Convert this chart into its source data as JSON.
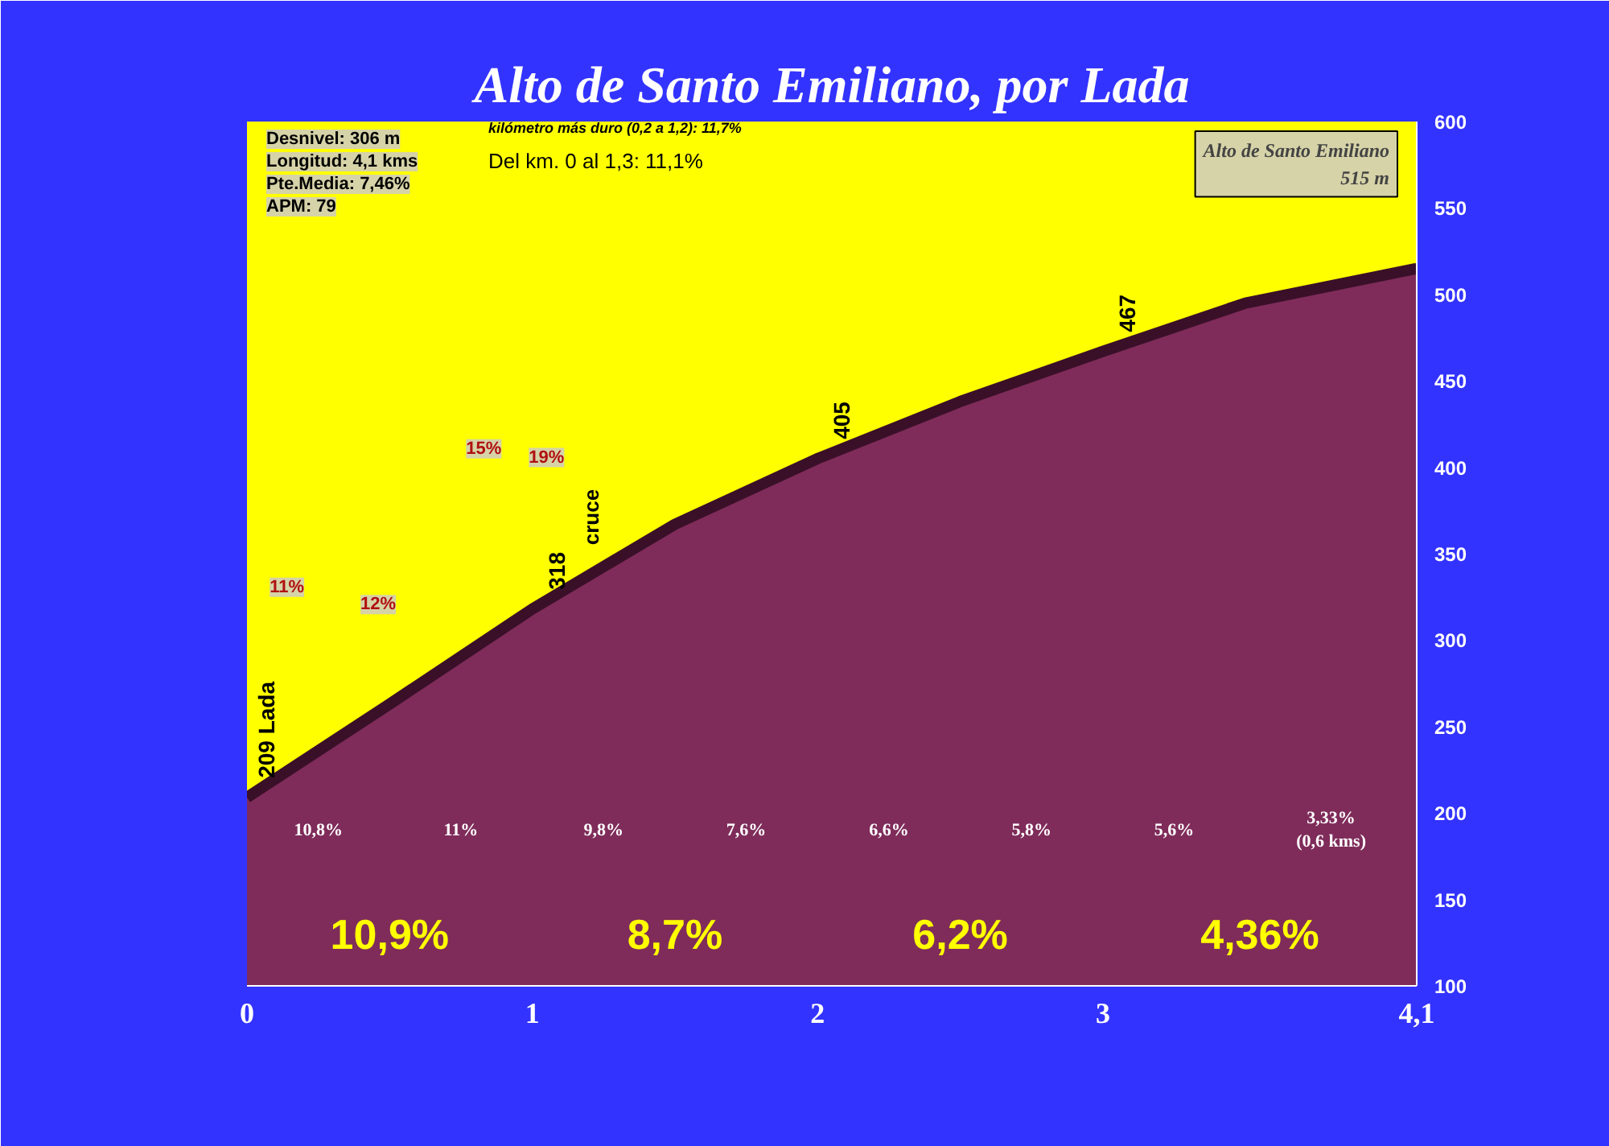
{
  "chart_data": {
    "type": "area",
    "title": "Alto de Santo Emiliano, por Lada",
    "x": [
      0,
      0.5,
      1,
      1.5,
      2,
      2.5,
      3,
      3.5,
      4.1
    ],
    "series": [
      {
        "color": "#7f2c5a",
        "values": [
          209,
          263,
          318,
          367,
          405,
          438,
          467,
          495,
          515
        ]
      }
    ],
    "xlim": [
      0,
      4.1
    ],
    "xticks": [
      0,
      1,
      2,
      3,
      {
        "value": 4.1,
        "label": "4,1"
      }
    ],
    "ylim": [
      100,
      600
    ],
    "yticks": [
      100,
      150,
      200,
      250,
      300,
      350,
      400,
      450,
      500,
      550,
      600
    ],
    "grid": false,
    "annotations": [
      "Desnivel: 306 m",
      "Longitud: 4,1 kms",
      "Pte.Media: 7,46%",
      "APM: 79",
      "kilómetro más duro (0,2 a 1,2):  11,7%",
      "Del km. 0 al 1,3:   11,1%",
      "cruce",
      "Alto de Santo Emiliano\n515 m",
      "11%",
      "12%",
      "15%",
      "19%",
      "10,8%",
      "11%",
      "9,8%",
      "7,6%",
      "6,6%",
      "5,8%",
      "5,6%",
      "3,33%\n(0,6 kms)",
      "10,9%",
      "8,7%",
      "6,2%",
      "4,36%",
      {
        "text": "209 Lada",
        "x": 0,
        "y": 209
      },
      {
        "text": "318",
        "x": 1,
        "y": 318
      },
      {
        "text": "405",
        "x": 2,
        "y": 405
      },
      {
        "text": "467",
        "x": 3,
        "y": 467
      }
    ]
  }
}
